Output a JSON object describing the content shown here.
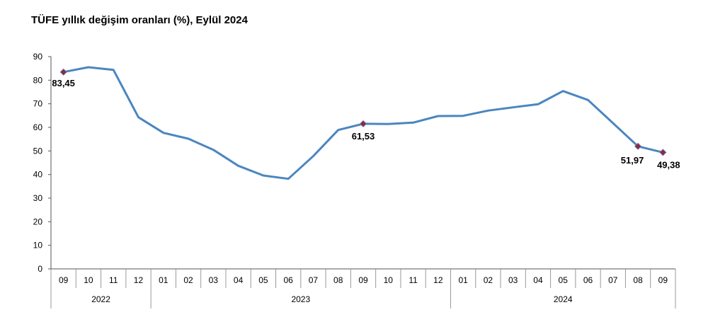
{
  "chart_data": {
    "type": "line",
    "title": "TÜFE yıllık değişim oranları (%), Eylül 2024",
    "xlabel": "",
    "ylabel": "",
    "ylim": [
      0,
      90
    ],
    "yticks": [
      "0",
      "10",
      "20",
      "30",
      "40",
      "50",
      "60",
      "70",
      "80",
      "90"
    ],
    "categories": [
      "09",
      "10",
      "11",
      "12",
      "01",
      "02",
      "03",
      "04",
      "05",
      "06",
      "07",
      "08",
      "09",
      "10",
      "11",
      "12",
      "01",
      "02",
      "03",
      "04",
      "05",
      "06",
      "07",
      "08",
      "09"
    ],
    "years": [
      {
        "label": "2022",
        "span": 4
      },
      {
        "label": "2023",
        "span": 12
      },
      {
        "label": "2024",
        "span": 9
      }
    ],
    "series": [
      {
        "values": [
          83.45,
          85.5,
          84.4,
          64.3,
          57.7,
          55.2,
          50.5,
          43.7,
          39.6,
          38.2,
          47.8,
          58.9,
          61.53,
          61.4,
          62.0,
          64.8,
          64.9,
          67.1,
          68.5,
          69.8,
          75.4,
          71.6,
          61.8,
          51.97,
          49.38
        ]
      }
    ],
    "annotations": [
      {
        "index": 0,
        "text": "83,45"
      },
      {
        "index": 12,
        "text": "61,53"
      },
      {
        "index": 23,
        "text": "51,97"
      },
      {
        "index": 24,
        "text": "49,38"
      }
    ],
    "line_color": "#4a86c0",
    "marker_color": "#8b2a45",
    "grid": false
  }
}
